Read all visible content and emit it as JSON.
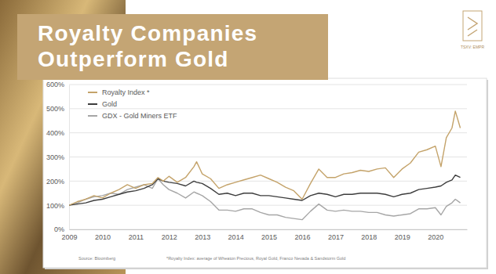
{
  "chart_data": {
    "type": "line",
    "title": "Royalty Companies Outperform Gold",
    "source": "Source: Bloomberg",
    "footnote": "*Royalty Index: average of Wheaton Precious, Royal Gold, Franco Nevada & Sandstorm Gold",
    "logo_text": "TSXV: EMPR",
    "x": [
      2009,
      2009.25,
      2009.5,
      2009.75,
      2010,
      2010.25,
      2010.5,
      2010.75,
      2011,
      2011.25,
      2011.5,
      2011.67,
      2011.83,
      2012,
      2012.25,
      2012.5,
      2012.75,
      2012.83,
      2013,
      2013.25,
      2013.5,
      2013.75,
      2014,
      2014.25,
      2014.5,
      2014.75,
      2015,
      2015.25,
      2015.5,
      2015.75,
      2016,
      2016.25,
      2016.5,
      2016.75,
      2017,
      2017.25,
      2017.5,
      2017.75,
      2018,
      2018.25,
      2018.5,
      2018.75,
      2019,
      2019.25,
      2019.5,
      2019.75,
      2020,
      2020.17,
      2020.33,
      2020.5,
      2020.6,
      2020.75
    ],
    "series": [
      {
        "name": "Royalty Index *",
        "color": "#c4a36a",
        "values": [
          100,
          115,
          125,
          140,
          130,
          150,
          165,
          185,
          170,
          185,
          190,
          215,
          200,
          220,
          195,
          215,
          260,
          280,
          230,
          210,
          170,
          185,
          195,
          205,
          215,
          225,
          210,
          195,
          175,
          160,
          125,
          190,
          250,
          215,
          215,
          230,
          235,
          245,
          240,
          250,
          255,
          215,
          250,
          275,
          320,
          330,
          345,
          260,
          380,
          420,
          490,
          420
        ]
      },
      {
        "name": "Gold",
        "color": "#3d3d3d",
        "values": [
          100,
          105,
          110,
          120,
          125,
          135,
          145,
          155,
          160,
          170,
          185,
          210,
          200,
          195,
          190,
          180,
          200,
          195,
          190,
          170,
          145,
          150,
          140,
          150,
          150,
          140,
          140,
          135,
          130,
          125,
          120,
          140,
          150,
          145,
          135,
          145,
          145,
          150,
          150,
          150,
          145,
          135,
          145,
          150,
          165,
          170,
          175,
          180,
          195,
          205,
          225,
          215
        ]
      },
      {
        "name": "GDX - Gold Miners ETF",
        "color": "#a6a6a6",
        "values": [
          100,
          110,
          125,
          135,
          140,
          150,
          145,
          165,
          175,
          185,
          170,
          210,
          185,
          165,
          150,
          130,
          155,
          150,
          140,
          115,
          80,
          80,
          75,
          85,
          85,
          70,
          60,
          60,
          50,
          45,
          40,
          75,
          105,
          80,
          75,
          80,
          75,
          75,
          70,
          70,
          60,
          55,
          60,
          65,
          85,
          85,
          90,
          60,
          95,
          110,
          125,
          110
        ]
      }
    ],
    "xlim": [
      2009,
      2020.95
    ],
    "xticks": [
      2009,
      2010,
      2011,
      2012,
      2013,
      2014,
      2015,
      2016,
      2017,
      2018,
      2019,
      2020
    ],
    "ylim": [
      0,
      600
    ],
    "yticks": [
      {
        "value": 0,
        "label": "0%"
      },
      {
        "value": 100,
        "label": "100%"
      },
      {
        "value": 200,
        "label": "200%"
      },
      {
        "value": 300,
        "label": "300%"
      },
      {
        "value": 400,
        "label": "400%"
      },
      {
        "value": 500,
        "label": "500%"
      },
      {
        "value": 600,
        "label": "600%"
      }
    ],
    "grid": true,
    "legend": "top-left"
  }
}
